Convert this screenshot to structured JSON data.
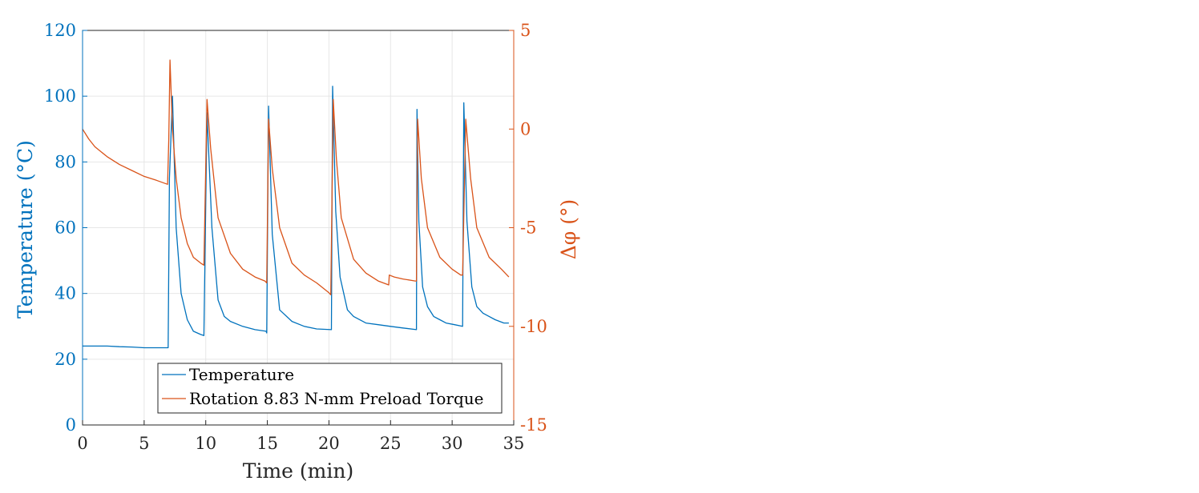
{
  "chart_data": {
    "type": "line",
    "xlabel": "Time (min)",
    "ylabel": "Temperature (°C)",
    "y2label": "Δφ (°)",
    "xlim": [
      0,
      35
    ],
    "ylim": [
      0,
      120
    ],
    "y2lim": [
      -15,
      5
    ],
    "xticks": [
      0,
      5,
      10,
      15,
      20,
      25,
      30,
      35
    ],
    "yticks": [
      0,
      20,
      40,
      60,
      80,
      100,
      120
    ],
    "y2ticks": [
      -15,
      -10,
      -5,
      0,
      5
    ],
    "grid": true,
    "legend_position": "bottom-center",
    "colors": {
      "temperature": "#0072BD",
      "rotation": "#D95319",
      "axis": "#262626"
    },
    "series": [
      {
        "name": "Temperature",
        "axis": "left",
        "color": "#0072BD",
        "x": [
          0,
          1,
          2,
          3,
          4,
          5,
          6,
          6.95,
          7.05,
          7.3,
          7.6,
          8,
          8.5,
          9,
          9.6,
          9.85,
          10.1,
          10.5,
          11,
          11.5,
          12,
          13,
          14,
          14.9,
          14.95,
          15.1,
          15.4,
          16,
          17,
          18,
          19,
          20.2,
          20.3,
          20.55,
          20.9,
          21.5,
          22,
          23,
          24,
          25,
          26,
          27.1,
          27.15,
          27.3,
          27.6,
          28,
          28.5,
          29,
          29.5,
          30.2,
          30.85,
          30.95,
          31.2,
          31.6,
          32,
          32.5,
          33,
          33.5,
          34.2,
          34.6
        ],
        "values": [
          24,
          24,
          24,
          23.8,
          23.7,
          23.5,
          23.5,
          23.5,
          75,
          100,
          60,
          40,
          32,
          28.5,
          27.5,
          27.2,
          95,
          60,
          38,
          33,
          31.5,
          30,
          29,
          28.5,
          28,
          97,
          58,
          35,
          31.5,
          30,
          29.2,
          29,
          103,
          65,
          45,
          35,
          33,
          31,
          30.5,
          30,
          29.5,
          29,
          96,
          62,
          42,
          36,
          33,
          32,
          31,
          30.5,
          30,
          98,
          62,
          42,
          36,
          34,
          33,
          32,
          31,
          31
        ]
      },
      {
        "name": "Rotation 8.83 N-mm Preload Torque",
        "axis": "right",
        "color": "#D95319",
        "x": [
          0,
          0.5,
          1,
          2,
          3,
          4,
          5,
          6,
          6.9,
          7.0,
          7.1,
          7.3,
          7.6,
          8,
          8.5,
          9,
          9.6,
          9.85,
          10.1,
          10.4,
          11,
          12,
          13,
          14,
          14.8,
          14.95,
          15.1,
          15.4,
          16,
          17,
          18,
          19,
          20,
          20.15,
          20.35,
          20.6,
          21,
          22,
          23,
          24,
          24.85,
          24.9,
          25.3,
          26,
          27.0,
          27.1,
          27.2,
          27.5,
          28,
          29,
          30,
          30.7,
          30.85,
          31.1,
          31.5,
          32,
          33,
          34,
          34.6
        ],
        "values": [
          0,
          -0.5,
          -0.9,
          -1.4,
          -1.8,
          -2.1,
          -2.4,
          -2.6,
          -2.8,
          -0.5,
          3.5,
          0,
          -2.5,
          -4.5,
          -5.8,
          -6.5,
          -6.8,
          -6.9,
          1.5,
          -1,
          -4.5,
          -6.3,
          -7.1,
          -7.5,
          -7.7,
          -7.8,
          0.5,
          -2,
          -5,
          -6.8,
          -7.4,
          -7.8,
          -8.3,
          -8.4,
          1.5,
          -1.5,
          -4.5,
          -6.6,
          -7.3,
          -7.7,
          -7.9,
          -7.4,
          -7.5,
          -7.6,
          -7.7,
          -7.7,
          0.5,
          -2.5,
          -5,
          -6.5,
          -7.1,
          -7.4,
          -7.4,
          0.5,
          -2.5,
          -5,
          -6.5,
          -7.1,
          -7.5
        ]
      }
    ]
  }
}
